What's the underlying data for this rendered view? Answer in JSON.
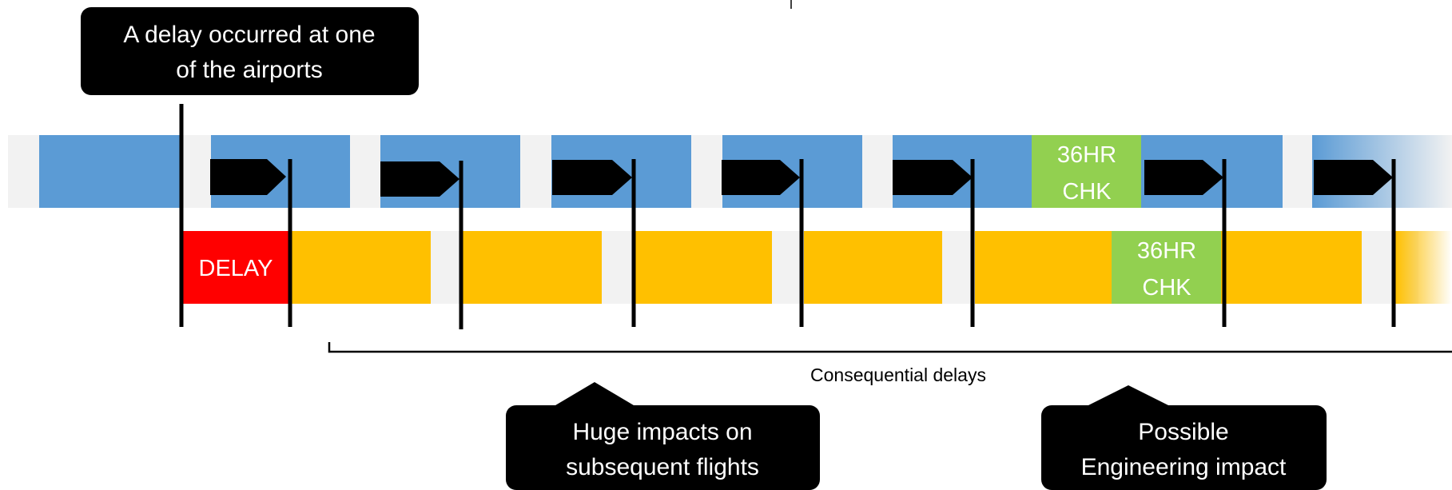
{
  "callouts": {
    "top": [
      "A delay occurred at one",
      "of the airports"
    ],
    "middle": [
      "Huge impacts on",
      "subsequent flights"
    ],
    "right": [
      "Possible",
      "Engineering impact"
    ]
  },
  "blocks": {
    "delay": "DELAY",
    "check_top": [
      "36HR",
      "CHK"
    ],
    "check_bottom": [
      "36HR",
      "CHK"
    ]
  },
  "bracket_label": "Consequential delays",
  "colors": {
    "blue": "#5b9bd5",
    "orange": "#ffc000",
    "red": "#ff0000",
    "green": "#92d050",
    "track": "#f2f2f2",
    "callout": "#000000"
  }
}
